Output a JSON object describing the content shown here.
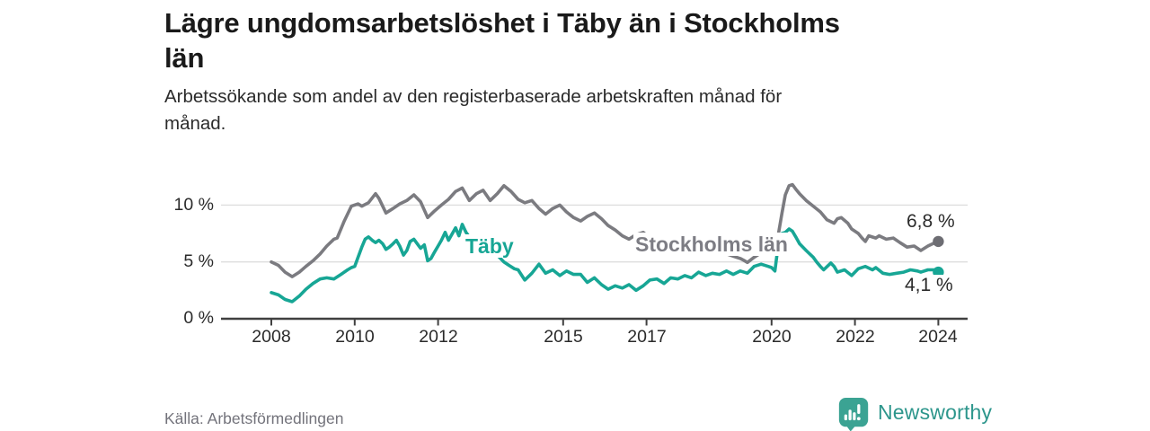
{
  "header": {
    "title": "Lägre ungdomsarbetslöshet i Täby än i Stockholms\nlän",
    "subtitle": "Arbetssökande som andel av den registerbaserade arbetskraften månad för\nmånad."
  },
  "footer": {
    "source": "Källa: Arbetsförmedlingen",
    "brand_name": "Newsworthy",
    "brand_icon": "bar-chart-speech-bubble-icon"
  },
  "colors": {
    "taby": "#17A695",
    "stockholm": "#7B7B80",
    "stockholm_dot": "#6D6D73",
    "taby_dot": "#17A695",
    "axis": "#404040",
    "grid": "#DEDEDE",
    "text": "#2b2b2b",
    "muted": "#73737b",
    "brand_teal": "#3BA393"
  },
  "chart_data": {
    "type": "line",
    "title": "Lägre ungdomsarbetslöshet i Täby än i Stockholms län",
    "subtitle": "Arbetssökande som andel av den registerbaserade arbetskraften månad för månad.",
    "xlabel": "",
    "ylabel": "",
    "unit": "%",
    "grid": "horizontal",
    "legend_position": "inline-labels",
    "ylim": [
      0,
      12.5
    ],
    "xlim": [
      2007.8,
      2024.7
    ],
    "yticks": [
      {
        "value": 0,
        "label": "0 %"
      },
      {
        "value": 5,
        "label": "5 %"
      },
      {
        "value": 10,
        "label": "10 %"
      }
    ],
    "xticks": [
      {
        "value": 2008,
        "label": "2008"
      },
      {
        "value": 2010,
        "label": "2010"
      },
      {
        "value": 2012,
        "label": "2012"
      },
      {
        "value": 2015,
        "label": "2015"
      },
      {
        "value": 2017,
        "label": "2017"
      },
      {
        "value": 2020,
        "label": "2020"
      },
      {
        "value": 2022,
        "label": "2022"
      },
      {
        "value": 2024,
        "label": "2024"
      }
    ],
    "series": [
      {
        "name": "Stockholms län",
        "color": "#7B7B80",
        "dot_color": "#6D6D73",
        "end_label": "6,8 %",
        "end_value": 6.8,
        "points": [
          [
            2008.0,
            5.0
          ],
          [
            2008.17,
            4.7
          ],
          [
            2008.33,
            4.1
          ],
          [
            2008.5,
            3.7
          ],
          [
            2008.67,
            4.1
          ],
          [
            2008.83,
            4.6
          ],
          [
            2009.0,
            5.1
          ],
          [
            2009.17,
            5.7
          ],
          [
            2009.33,
            6.4
          ],
          [
            2009.5,
            7.0
          ],
          [
            2009.58,
            7.1
          ],
          [
            2009.75,
            8.6
          ],
          [
            2009.92,
            9.9
          ],
          [
            2010.08,
            10.1
          ],
          [
            2010.17,
            9.9
          ],
          [
            2010.33,
            10.2
          ],
          [
            2010.5,
            11.0
          ],
          [
            2010.58,
            10.6
          ],
          [
            2010.75,
            9.3
          ],
          [
            2010.92,
            9.7
          ],
          [
            2011.08,
            10.1
          ],
          [
            2011.25,
            10.4
          ],
          [
            2011.42,
            10.9
          ],
          [
            2011.58,
            10.3
          ],
          [
            2011.75,
            8.9
          ],
          [
            2011.92,
            9.5
          ],
          [
            2012.08,
            10.0
          ],
          [
            2012.25,
            10.5
          ],
          [
            2012.42,
            11.2
          ],
          [
            2012.58,
            11.5
          ],
          [
            2012.75,
            10.4
          ],
          [
            2012.92,
            11.0
          ],
          [
            2013.08,
            11.3
          ],
          [
            2013.25,
            10.4
          ],
          [
            2013.42,
            11.0
          ],
          [
            2013.58,
            11.7
          ],
          [
            2013.75,
            11.2
          ],
          [
            2013.92,
            10.5
          ],
          [
            2014.08,
            10.2
          ],
          [
            2014.25,
            10.4
          ],
          [
            2014.42,
            9.7
          ],
          [
            2014.58,
            9.2
          ],
          [
            2014.75,
            9.7
          ],
          [
            2014.92,
            10.0
          ],
          [
            2015.08,
            9.4
          ],
          [
            2015.25,
            8.9
          ],
          [
            2015.42,
            8.6
          ],
          [
            2015.58,
            9.0
          ],
          [
            2015.75,
            9.3
          ],
          [
            2015.92,
            8.8
          ],
          [
            2016.08,
            8.2
          ],
          [
            2016.25,
            7.8
          ],
          [
            2016.42,
            7.3
          ],
          [
            2016.58,
            7.0
          ],
          [
            2016.75,
            7.4
          ],
          [
            2016.92,
            7.6
          ],
          [
            2017.08,
            7.1
          ],
          [
            2017.25,
            6.8
          ],
          [
            2017.42,
            6.6
          ],
          [
            2017.58,
            6.5
          ],
          [
            2017.75,
            6.3
          ],
          [
            2017.92,
            6.2
          ],
          [
            2018.08,
            6.1
          ],
          [
            2018.25,
            6.0
          ],
          [
            2018.42,
            5.9
          ],
          [
            2018.58,
            5.8
          ],
          [
            2018.75,
            5.9
          ],
          [
            2018.92,
            5.7
          ],
          [
            2019.08,
            5.5
          ],
          [
            2019.25,
            5.3
          ],
          [
            2019.33,
            5.15
          ],
          [
            2019.42,
            4.95
          ],
          [
            2019.58,
            5.4
          ],
          [
            2019.75,
            5.8
          ],
          [
            2019.92,
            6.0
          ],
          [
            2020.0,
            6.1
          ],
          [
            2020.08,
            6.4
          ],
          [
            2020.17,
            7.6
          ],
          [
            2020.25,
            9.3
          ],
          [
            2020.33,
            10.9
          ],
          [
            2020.42,
            11.7
          ],
          [
            2020.5,
            11.8
          ],
          [
            2020.58,
            11.4
          ],
          [
            2020.67,
            11.0
          ],
          [
            2020.83,
            10.4
          ],
          [
            2021.0,
            9.9
          ],
          [
            2021.17,
            9.4
          ],
          [
            2021.33,
            8.7
          ],
          [
            2021.5,
            8.4
          ],
          [
            2021.58,
            8.8
          ],
          [
            2021.67,
            8.9
          ],
          [
            2021.83,
            8.4
          ],
          [
            2021.92,
            7.9
          ],
          [
            2022.08,
            7.5
          ],
          [
            2022.17,
            7.1
          ],
          [
            2022.25,
            6.8
          ],
          [
            2022.33,
            7.3
          ],
          [
            2022.5,
            7.1
          ],
          [
            2022.58,
            7.3
          ],
          [
            2022.75,
            7.0
          ],
          [
            2022.92,
            7.1
          ],
          [
            2023.08,
            6.7
          ],
          [
            2023.25,
            6.3
          ],
          [
            2023.42,
            6.4
          ],
          [
            2023.58,
            6.0
          ],
          [
            2023.75,
            6.4
          ],
          [
            2023.92,
            6.7
          ],
          [
            2024.0,
            6.8
          ]
        ]
      },
      {
        "name": "Täby",
        "color": "#17A695",
        "dot_color": "#17A695",
        "end_label": "4,1 %",
        "end_value": 4.1,
        "points": [
          [
            2008.0,
            2.3
          ],
          [
            2008.17,
            2.1
          ],
          [
            2008.33,
            1.7
          ],
          [
            2008.5,
            1.5
          ],
          [
            2008.67,
            2.0
          ],
          [
            2008.83,
            2.6
          ],
          [
            2009.0,
            3.1
          ],
          [
            2009.17,
            3.5
          ],
          [
            2009.33,
            3.6
          ],
          [
            2009.5,
            3.5
          ],
          [
            2009.67,
            3.9
          ],
          [
            2009.83,
            4.3
          ],
          [
            2009.92,
            4.5
          ],
          [
            2010.0,
            4.6
          ],
          [
            2010.08,
            5.4
          ],
          [
            2010.17,
            6.3
          ],
          [
            2010.25,
            7.0
          ],
          [
            2010.33,
            7.2
          ],
          [
            2010.42,
            6.9
          ],
          [
            2010.5,
            6.7
          ],
          [
            2010.58,
            6.9
          ],
          [
            2010.67,
            6.6
          ],
          [
            2010.75,
            6.1
          ],
          [
            2010.83,
            6.3
          ],
          [
            2010.92,
            6.6
          ],
          [
            2011.0,
            6.9
          ],
          [
            2011.08,
            6.4
          ],
          [
            2011.17,
            5.6
          ],
          [
            2011.25,
            6.0
          ],
          [
            2011.33,
            6.8
          ],
          [
            2011.42,
            7.0
          ],
          [
            2011.5,
            6.6
          ],
          [
            2011.58,
            6.2
          ],
          [
            2011.67,
            6.5
          ],
          [
            2011.75,
            5.1
          ],
          [
            2011.83,
            5.3
          ],
          [
            2011.92,
            5.9
          ],
          [
            2012.0,
            6.4
          ],
          [
            2012.08,
            6.9
          ],
          [
            2012.17,
            7.6
          ],
          [
            2012.25,
            6.9
          ],
          [
            2012.42,
            8.0
          ],
          [
            2012.5,
            7.3
          ],
          [
            2012.58,
            8.3
          ],
          [
            2012.67,
            7.6
          ],
          [
            2012.75,
            7.2
          ],
          [
            2012.92,
            6.9
          ],
          [
            2013.08,
            6.6
          ],
          [
            2013.25,
            6.2
          ],
          [
            2013.42,
            5.6
          ],
          [
            2013.58,
            5.0
          ],
          [
            2013.7,
            4.7
          ],
          [
            2013.83,
            4.4
          ],
          [
            2013.92,
            4.3
          ],
          [
            2014.08,
            3.4
          ],
          [
            2014.25,
            4.0
          ],
          [
            2014.42,
            4.8
          ],
          [
            2014.58,
            4.0
          ],
          [
            2014.75,
            4.3
          ],
          [
            2014.92,
            3.8
          ],
          [
            2015.08,
            4.2
          ],
          [
            2015.25,
            3.9
          ],
          [
            2015.42,
            3.9
          ],
          [
            2015.58,
            3.2
          ],
          [
            2015.75,
            3.6
          ],
          [
            2015.92,
            3.0
          ],
          [
            2016.08,
            2.6
          ],
          [
            2016.25,
            2.9
          ],
          [
            2016.42,
            2.7
          ],
          [
            2016.58,
            3.0
          ],
          [
            2016.75,
            2.5
          ],
          [
            2016.92,
            2.9
          ],
          [
            2017.08,
            3.4
          ],
          [
            2017.25,
            3.5
          ],
          [
            2017.42,
            3.1
          ],
          [
            2017.58,
            3.6
          ],
          [
            2017.75,
            3.5
          ],
          [
            2017.92,
            3.8
          ],
          [
            2018.08,
            3.6
          ],
          [
            2018.25,
            4.1
          ],
          [
            2018.42,
            3.8
          ],
          [
            2018.58,
            4.0
          ],
          [
            2018.75,
            3.9
          ],
          [
            2018.92,
            4.2
          ],
          [
            2019.08,
            3.9
          ],
          [
            2019.25,
            4.2
          ],
          [
            2019.42,
            4.0
          ],
          [
            2019.58,
            4.6
          ],
          [
            2019.75,
            4.8
          ],
          [
            2019.92,
            4.6
          ],
          [
            2020.0,
            4.5
          ],
          [
            2020.08,
            4.2
          ],
          [
            2020.17,
            6.8
          ],
          [
            2020.25,
            7.5
          ],
          [
            2020.33,
            7.6
          ],
          [
            2020.42,
            7.9
          ],
          [
            2020.5,
            7.7
          ],
          [
            2020.58,
            7.2
          ],
          [
            2020.67,
            6.6
          ],
          [
            2020.83,
            6.0
          ],
          [
            2021.0,
            5.4
          ],
          [
            2021.08,
            5.0
          ],
          [
            2021.17,
            4.6
          ],
          [
            2021.25,
            4.3
          ],
          [
            2021.42,
            4.9
          ],
          [
            2021.5,
            4.6
          ],
          [
            2021.58,
            4.1
          ],
          [
            2021.75,
            4.3
          ],
          [
            2021.92,
            3.8
          ],
          [
            2022.08,
            4.4
          ],
          [
            2022.25,
            4.6
          ],
          [
            2022.42,
            4.3
          ],
          [
            2022.5,
            4.5
          ],
          [
            2022.67,
            4.0
          ],
          [
            2022.83,
            3.9
          ],
          [
            2023.0,
            4.0
          ],
          [
            2023.17,
            4.1
          ],
          [
            2023.33,
            4.3
          ],
          [
            2023.5,
            4.2
          ],
          [
            2023.58,
            4.1
          ],
          [
            2023.75,
            4.3
          ],
          [
            2023.92,
            4.3
          ],
          [
            2024.0,
            4.1
          ]
        ]
      }
    ]
  }
}
